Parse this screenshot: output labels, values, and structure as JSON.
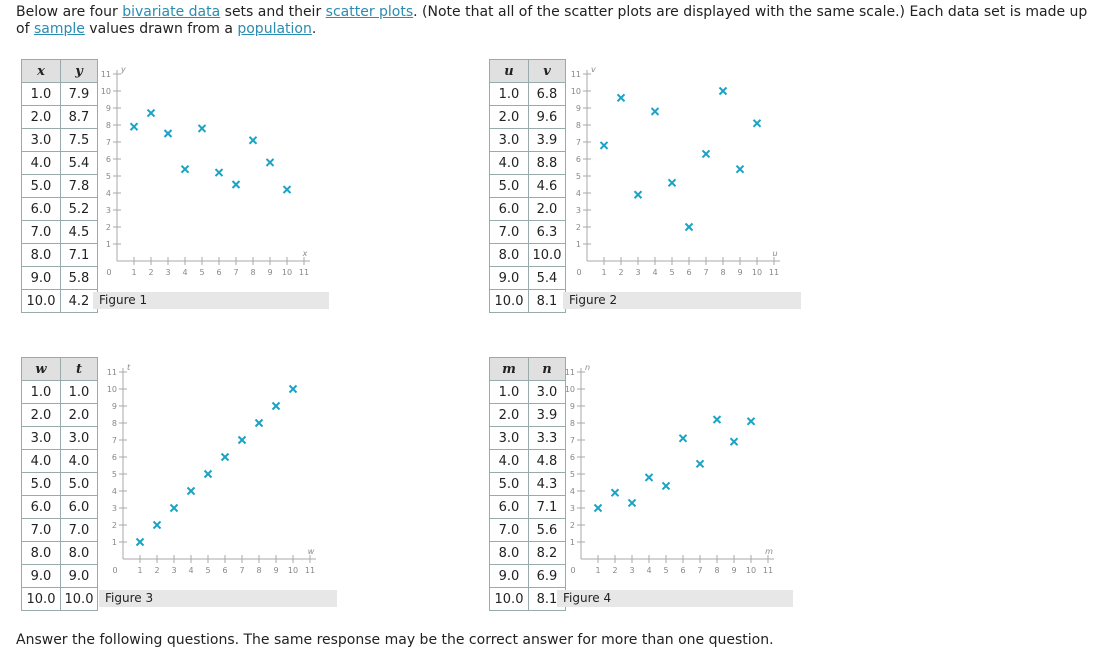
{
  "intro": {
    "t1": "Below are four ",
    "link1": "bivariate data",
    "t2": " sets and their ",
    "link2": "scatter plots",
    "t3": ". (Note that all of the scatter plots are displayed with the same scale.) Each data set is made up of ",
    "link3": "sample",
    "t4": " values drawn from a ",
    "link4": "population",
    "t5": "."
  },
  "question": "Answer the following questions. The same response may be the correct answer for more than one question.",
  "marker_color": "#1ba3c6",
  "ticks": [
    "1",
    "2",
    "3",
    "4",
    "5",
    "6",
    "7",
    "8",
    "9",
    "10",
    "11"
  ],
  "zero": "0",
  "figures": [
    {
      "label": "Figure 1",
      "xvar": "x",
      "yvar": "y",
      "x": [
        "1.0",
        "2.0",
        "3.0",
        "4.0",
        "5.0",
        "6.0",
        "7.0",
        "8.0",
        "9.0",
        "10.0"
      ],
      "y": [
        "7.9",
        "8.7",
        "7.5",
        "5.4",
        "7.8",
        "5.2",
        "4.5",
        "7.1",
        "5.8",
        "4.2"
      ]
    },
    {
      "label": "Figure 2",
      "xvar": "u",
      "yvar": "v",
      "x": [
        "1.0",
        "2.0",
        "3.0",
        "4.0",
        "5.0",
        "6.0",
        "7.0",
        "8.0",
        "9.0",
        "10.0"
      ],
      "y": [
        "6.8",
        "9.6",
        "3.9",
        "8.8",
        "4.6",
        "2.0",
        "6.3",
        "10.0",
        "5.4",
        "8.1"
      ]
    },
    {
      "label": "Figure 3",
      "xvar": "w",
      "yvar": "t",
      "x": [
        "1.0",
        "2.0",
        "3.0",
        "4.0",
        "5.0",
        "6.0",
        "7.0",
        "8.0",
        "9.0",
        "10.0"
      ],
      "y": [
        "1.0",
        "2.0",
        "3.0",
        "4.0",
        "5.0",
        "6.0",
        "7.0",
        "8.0",
        "9.0",
        "10.0"
      ]
    },
    {
      "label": "Figure 4",
      "xvar": "m",
      "yvar": "n",
      "x": [
        "1.0",
        "2.0",
        "3.0",
        "4.0",
        "5.0",
        "6.0",
        "7.0",
        "8.0",
        "9.0",
        "10.0"
      ],
      "y": [
        "3.0",
        "3.9",
        "3.3",
        "4.8",
        "4.3",
        "7.1",
        "5.6",
        "8.2",
        "6.9",
        "8.1"
      ]
    }
  ],
  "chart_data": [
    {
      "type": "scatter",
      "xlabel": "x",
      "ylabel": "y",
      "xlim": [
        0,
        11
      ],
      "ylim": [
        0,
        11
      ],
      "x": [
        1,
        2,
        3,
        4,
        5,
        6,
        7,
        8,
        9,
        10
      ],
      "y": [
        7.9,
        8.7,
        7.5,
        5.4,
        7.8,
        5.2,
        4.5,
        7.1,
        5.8,
        4.2
      ]
    },
    {
      "type": "scatter",
      "xlabel": "u",
      "ylabel": "v",
      "xlim": [
        0,
        11
      ],
      "ylim": [
        0,
        11
      ],
      "x": [
        1,
        2,
        3,
        4,
        5,
        6,
        7,
        8,
        9,
        10
      ],
      "y": [
        6.8,
        9.6,
        3.9,
        8.8,
        4.6,
        2.0,
        6.3,
        10.0,
        5.4,
        8.1
      ]
    },
    {
      "type": "scatter",
      "xlabel": "w",
      "ylabel": "t",
      "xlim": [
        0,
        11
      ],
      "ylim": [
        0,
        11
      ],
      "x": [
        1,
        2,
        3,
        4,
        5,
        6,
        7,
        8,
        9,
        10
      ],
      "y": [
        1,
        2,
        3,
        4,
        5,
        6,
        7,
        8,
        9,
        10
      ]
    },
    {
      "type": "scatter",
      "xlabel": "m",
      "ylabel": "n",
      "xlim": [
        0,
        11
      ],
      "ylim": [
        0,
        11
      ],
      "x": [
        1,
        2,
        3,
        4,
        5,
        6,
        7,
        8,
        9,
        10
      ],
      "y": [
        3.0,
        3.9,
        3.3,
        4.8,
        4.3,
        7.1,
        5.6,
        8.2,
        6.9,
        8.1
      ]
    }
  ]
}
